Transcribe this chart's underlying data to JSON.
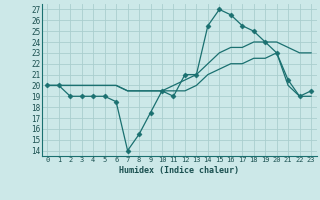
{
  "xlabel": "Humidex (Indice chaleur)",
  "ylabel": "",
  "bg_color": "#cce8e8",
  "grid_color": "#aacece",
  "line_color": "#1a7070",
  "xlim": [
    -0.5,
    23.5
  ],
  "ylim": [
    13.5,
    27.5
  ],
  "xticks": [
    0,
    1,
    2,
    3,
    4,
    5,
    6,
    7,
    8,
    9,
    10,
    11,
    12,
    13,
    14,
    15,
    16,
    17,
    18,
    19,
    20,
    21,
    22,
    23
  ],
  "yticks": [
    14,
    15,
    16,
    17,
    18,
    19,
    20,
    21,
    22,
    23,
    24,
    25,
    26,
    27
  ],
  "line1_x": [
    0,
    1,
    2,
    3,
    4,
    5,
    6,
    7,
    8,
    9,
    10,
    11,
    12,
    13,
    14,
    15,
    16,
    17,
    18,
    19,
    20,
    21,
    22,
    23
  ],
  "line1_y": [
    20,
    20,
    19,
    19,
    19,
    19,
    18.5,
    14,
    15.5,
    17.5,
    19.5,
    19,
    21,
    21,
    25.5,
    27,
    26.5,
    25.5,
    25,
    24,
    23,
    20.5,
    19,
    19.5
  ],
  "line2_x": [
    0,
    1,
    2,
    3,
    4,
    5,
    6,
    7,
    8,
    9,
    10,
    11,
    12,
    13,
    14,
    15,
    16,
    17,
    18,
    19,
    20,
    21,
    22,
    23
  ],
  "line2_y": [
    20,
    20,
    20,
    20,
    20,
    20,
    20,
    19.5,
    19.5,
    19.5,
    19.5,
    20,
    20.5,
    21,
    22,
    23,
    23.5,
    23.5,
    24,
    24,
    24,
    23.5,
    23,
    23
  ],
  "line3_x": [
    0,
    1,
    2,
    3,
    4,
    5,
    6,
    7,
    8,
    9,
    10,
    11,
    12,
    13,
    14,
    15,
    16,
    17,
    18,
    19,
    20,
    21,
    22,
    23
  ],
  "line3_y": [
    20,
    20,
    20,
    20,
    20,
    20,
    20,
    19.5,
    19.5,
    19.5,
    19.5,
    19.5,
    19.5,
    20,
    21,
    21.5,
    22,
    22,
    22.5,
    22.5,
    23,
    20,
    19,
    19
  ],
  "marker": "D",
  "markersize": 2.5
}
